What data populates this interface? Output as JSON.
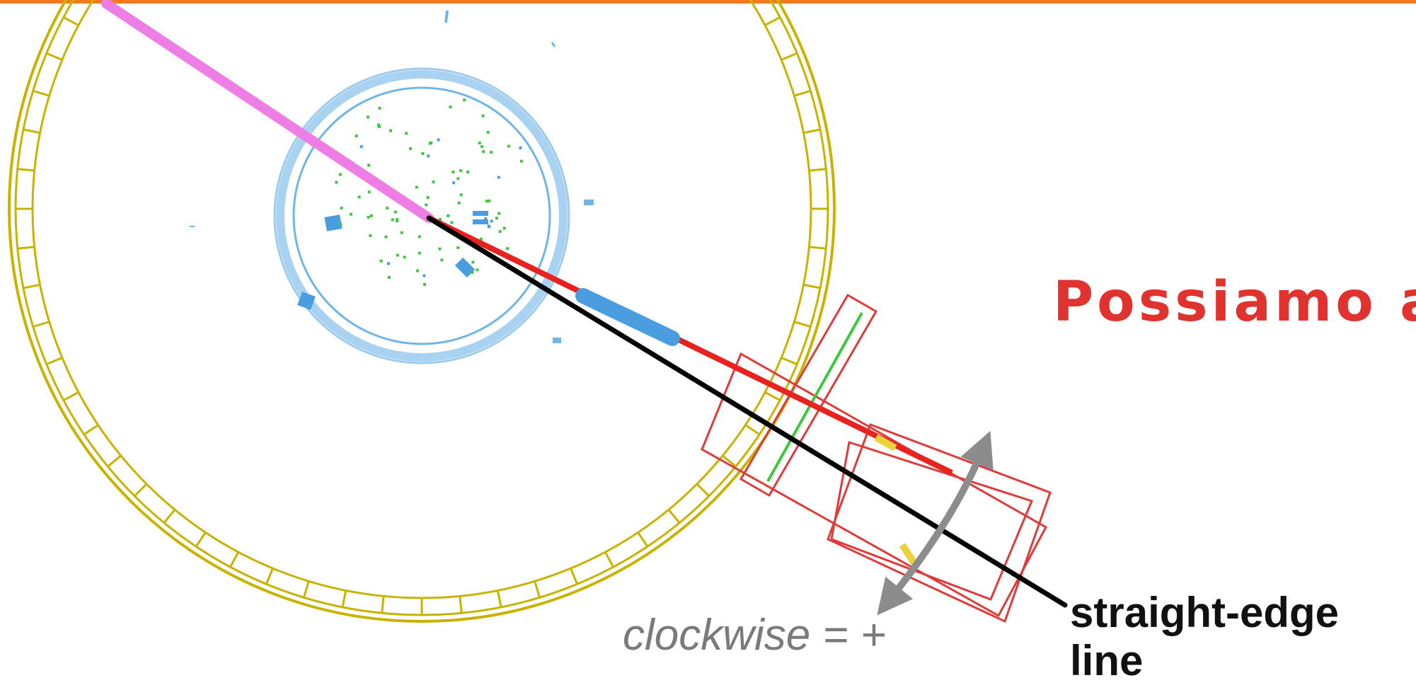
{
  "headline": "Possiamo a",
  "rotation_label": "clockwise = +",
  "line_label": "straight-edge line",
  "colors": {
    "accent_bar": "#f07a1f",
    "headline": "#e0322e",
    "calorimeter": "#c8b400",
    "tracker": "#6fb6e6",
    "track_electron": "#ee7ee6",
    "track_muon": "#e8221f",
    "muon_chamber": "#e03a3a",
    "straight_edge": "#000000",
    "rotation_arrow": "#8c8c8c",
    "hits": "#3ec83e"
  }
}
